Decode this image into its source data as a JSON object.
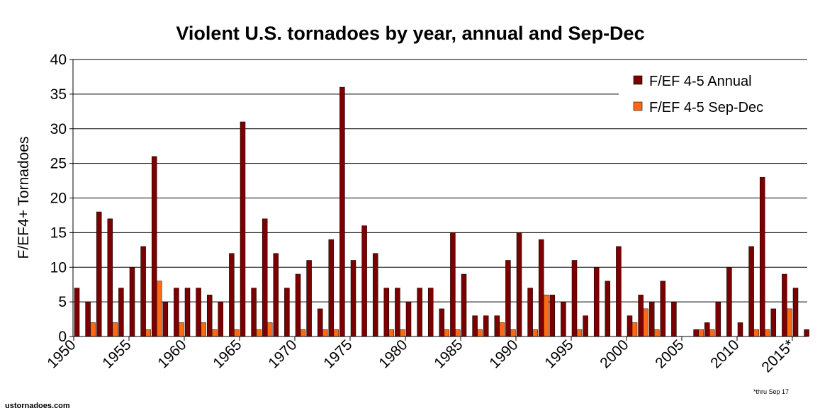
{
  "colors": {
    "annual": "#7b0000",
    "sepdec": "#ff6a10",
    "grid": "#000000",
    "background": "#ffffff"
  },
  "footnote": "*thru Sep 17",
  "source": "ustornadoes.com",
  "chart_data": {
    "type": "bar",
    "title": "Violent U.S. tornadoes by year, annual and Sep-Dec",
    "xlabel": "",
    "ylabel": "F/EF4+ Tornadoes",
    "ylim": [
      0,
      40
    ],
    "yticks": [
      0,
      5,
      10,
      15,
      20,
      25,
      30,
      35,
      40
    ],
    "grid": true,
    "legend_position": "top-right",
    "x_tick_labels": [
      "1950",
      "1955",
      "1960",
      "1965",
      "1970",
      "1975",
      "1980",
      "1985",
      "1990",
      "1995",
      "2000",
      "2005",
      "2010",
      "2015*"
    ],
    "categories": [
      1950,
      1951,
      1952,
      1953,
      1954,
      1955,
      1956,
      1957,
      1958,
      1959,
      1960,
      1961,
      1962,
      1963,
      1964,
      1965,
      1966,
      1967,
      1968,
      1969,
      1970,
      1971,
      1972,
      1973,
      1974,
      1975,
      1976,
      1977,
      1978,
      1979,
      1980,
      1981,
      1982,
      1983,
      1984,
      1985,
      1986,
      1987,
      1988,
      1989,
      1990,
      1991,
      1992,
      1993,
      1994,
      1995,
      1996,
      1997,
      1998,
      1999,
      2000,
      2001,
      2002,
      2003,
      2004,
      2005,
      2006,
      2007,
      2008,
      2009,
      2010,
      2011,
      2012,
      2013,
      2014,
      2015
    ],
    "series": [
      {
        "name": "F/EF 4-5 Annual",
        "values": [
          7,
          5,
          18,
          17,
          7,
          10,
          13,
          26,
          5,
          7,
          7,
          7,
          6,
          5,
          12,
          31,
          7,
          17,
          12,
          7,
          9,
          11,
          4,
          14,
          36,
          11,
          16,
          12,
          7,
          7,
          5,
          7,
          7,
          4,
          15,
          9,
          3,
          3,
          3,
          11,
          15,
          7,
          14,
          6,
          5,
          11,
          3,
          10,
          8,
          13,
          3,
          6,
          5,
          8,
          5,
          0,
          1,
          2,
          5,
          10,
          2,
          13,
          23,
          4,
          9,
          7
        ]
      },
      {
        "name": "F/EF 4-5 Sep-Dec",
        "values": [
          0,
          2,
          0,
          2,
          0,
          0,
          1,
          8,
          0,
          2,
          0,
          2,
          1,
          0,
          1,
          0,
          1,
          2,
          0,
          0,
          1,
          0,
          1,
          1,
          0,
          0,
          0,
          0,
          1,
          1,
          0,
          0,
          0,
          1,
          1,
          0,
          1,
          0,
          2,
          1,
          0,
          1,
          6,
          0,
          0,
          1,
          0,
          0,
          0,
          0,
          2,
          4,
          1,
          0,
          0,
          0,
          1,
          1,
          0,
          0,
          0,
          1,
          1,
          0,
          4,
          0
        ]
      }
    ],
    "extra_bar_2016_annual": 1
  }
}
